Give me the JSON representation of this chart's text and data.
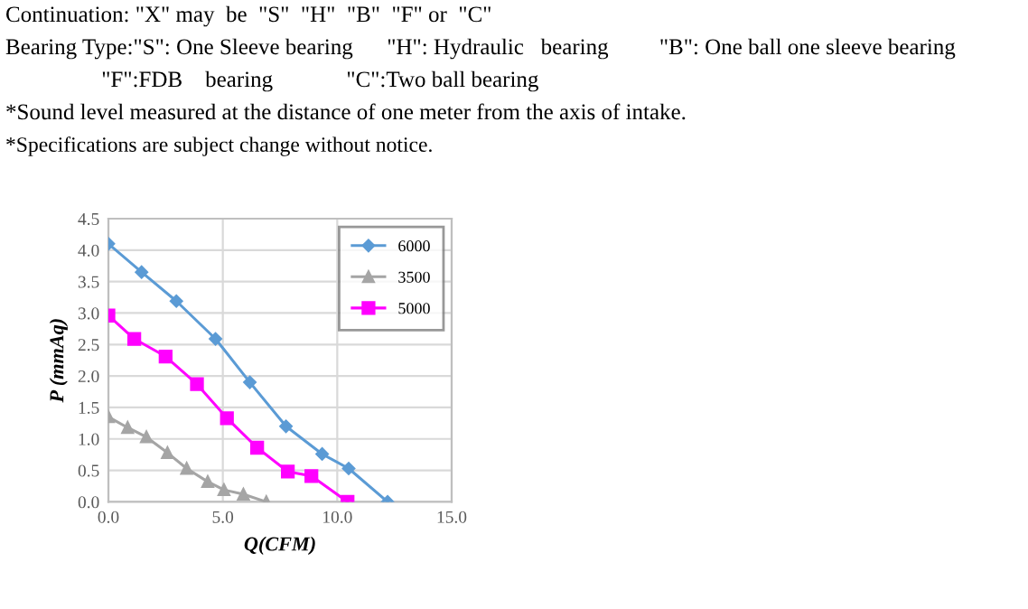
{
  "chart_data": {
    "type": "line",
    "xlabel": "Q(CFM)",
    "ylabel": "P (mmAq)",
    "annotations": [
      "Continuation: \"X\" may  be  \"S\"  \"H\"  \"B\"  \"F\" or  \"C\"",
      "Bearing Type:\"S\": One Sleeve bearing      \"H\": Hydraulic   bearing         \"B\": One ball one sleeve bearing",
      "                 \"F\":FDB    bearing             \"C\":Two ball bearing",
      "*Sound level measured at the distance of one meter from the axis of intake.",
      "*Specifications are subject change without notice."
    ],
    "series": [
      {
        "name": "6000",
        "color": "#5b9bd5",
        "marker": "diamond",
        "x": [
          0,
          1.45,
          2.97,
          4.68,
          6.18,
          7.76,
          9.34,
          10.5,
          12.2
        ],
        "values": [
          4.1,
          3.65,
          3.19,
          2.59,
          1.9,
          1.2,
          0.76,
          0.53,
          0
        ]
      },
      {
        "name": "3500",
        "color": "#a5a5a5",
        "marker": "triangle",
        "x": [
          0,
          0.84,
          1.66,
          2.58,
          3.42,
          4.34,
          5.05,
          5.9,
          6.9
        ],
        "values": [
          1.35,
          1.18,
          1.03,
          0.78,
          0.53,
          0.32,
          0.19,
          0.12,
          0
        ]
      },
      {
        "name": "5000",
        "color": "#ff00ff",
        "marker": "square",
        "x": [
          0,
          1.13,
          2.5,
          3.87,
          5.18,
          6.5,
          7.84,
          8.87,
          10.45
        ],
        "values": [
          2.96,
          2.59,
          2.31,
          1.87,
          1.33,
          0.86,
          0.48,
          0.41,
          0
        ]
      }
    ],
    "xlim": [
      0,
      15
    ],
    "xticks": [
      {
        "value": 0,
        "label": "0.0"
      },
      {
        "value": 5,
        "label": "5.0"
      },
      {
        "value": 10,
        "label": "10.0"
      },
      {
        "value": 15,
        "label": "15.0"
      }
    ],
    "ylim": [
      0,
      4.5
    ],
    "yticks": [
      {
        "value": 0,
        "label": "0.0"
      },
      {
        "value": 0.5,
        "label": "0.5"
      },
      {
        "value": 1,
        "label": "1.0"
      },
      {
        "value": 1.5,
        "label": "1.5"
      },
      {
        "value": 2,
        "label": "2.0"
      },
      {
        "value": 2.5,
        "label": "2.5"
      },
      {
        "value": 3,
        "label": "3.0"
      },
      {
        "value": 3.5,
        "label": "3.5"
      },
      {
        "value": 4,
        "label": "4.0"
      },
      {
        "value": 4.5,
        "label": "4.5"
      }
    ],
    "grid": true,
    "legend": "top right"
  }
}
